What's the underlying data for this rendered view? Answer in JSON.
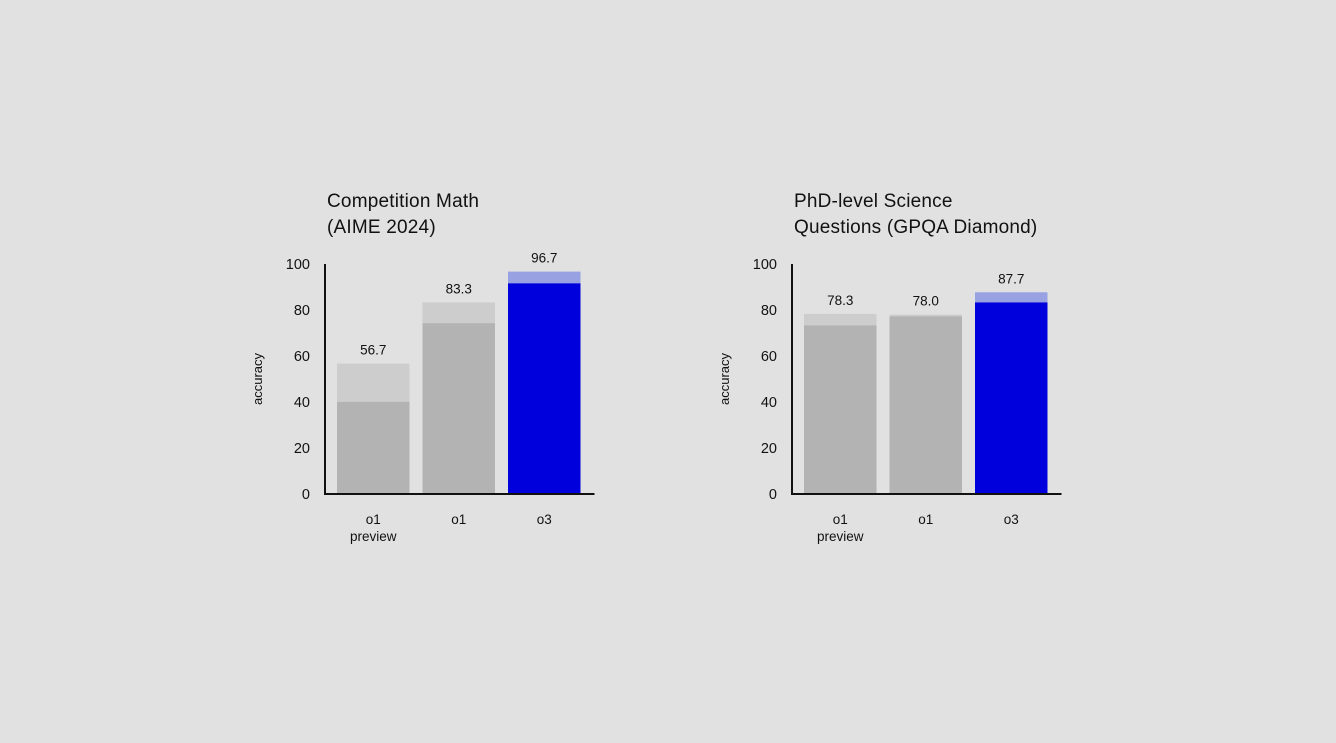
{
  "chart_data": [
    {
      "type": "bar",
      "title_lines": [
        "Competition Math",
        "(AIME 2024)"
      ],
      "ylabel": "accuracy",
      "xlabel": "",
      "ylim": [
        0,
        100
      ],
      "yticks": [
        0,
        20,
        40,
        60,
        80,
        100
      ],
      "categories": [
        [
          "o1",
          "preview"
        ],
        [
          "o1"
        ],
        [
          "o3"
        ]
      ],
      "series": [
        {
          "values": [
            40.1,
            74.3,
            91.6
          ]
        },
        {
          "values": [
            56.7,
            83.3,
            96.7
          ]
        }
      ],
      "value_labels": [
        "56.7",
        "83.3",
        "96.7"
      ],
      "highlight_index": 2,
      "grid": false,
      "legend": "none"
    },
    {
      "type": "bar",
      "title_lines": [
        "PhD-level Science",
        "Questions (GPQA Diamond)"
      ],
      "ylabel": "accuracy",
      "xlabel": "",
      "ylim": [
        0,
        100
      ],
      "yticks": [
        0,
        20,
        40,
        60,
        80,
        100
      ],
      "categories": [
        [
          "o1",
          "preview"
        ],
        [
          "o1"
        ],
        [
          "o3"
        ]
      ],
      "series": [
        {
          "values": [
            73.3,
            77.3,
            83.3
          ]
        },
        {
          "values": [
            78.3,
            78.0,
            87.7
          ]
        }
      ],
      "value_labels": [
        "78.3",
        "78.0",
        "87.7"
      ],
      "highlight_index": 2,
      "grid": false,
      "legend": "none"
    }
  ],
  "colors": {
    "background": "#e1e1e1",
    "axis": "#111111",
    "base_bar": "#b3b3b3",
    "extra_bar": "#cdcdcd",
    "highlight_base": "#0000dc",
    "highlight_extra": "#98a2e3"
  }
}
